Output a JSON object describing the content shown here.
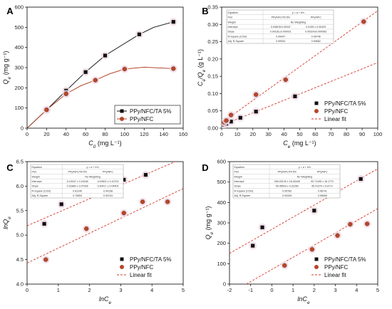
{
  "chart_data": [
    {
      "panel": "A",
      "type": "line",
      "xlabel_main": "C",
      "xlabel_sub": "0",
      "xlabel_unit": " (mg L⁻¹)",
      "ylabel_main": "Q",
      "ylabel_sub": "e",
      "ylabel_unit": " (mg g⁻¹)",
      "xlim": [
        0,
        160
      ],
      "ylim": [
        0,
        600
      ],
      "xticks": [
        0,
        20,
        40,
        60,
        80,
        100,
        120,
        140,
        160
      ],
      "yticks": [
        0,
        100,
        200,
        300,
        400,
        500,
        600
      ],
      "legend_position": "bottom-right",
      "series": [
        {
          "name": "PPy/NFC/TA 5%",
          "marker": "square",
          "color": "#111111",
          "points": [
            [
              20,
              91
            ],
            [
              40,
              186
            ],
            [
              60,
              278
            ],
            [
              80,
              360
            ],
            [
              115,
              465
            ],
            [
              150,
              527
            ]
          ],
          "curve": [
            [
              0,
              0
            ],
            [
              20,
              91
            ],
            [
              40,
              186
            ],
            [
              60,
              278
            ],
            [
              80,
              360
            ],
            [
              100,
              420
            ],
            [
              115,
              465
            ],
            [
              130,
              500
            ],
            [
              150,
              527
            ]
          ]
        },
        {
          "name": "PPy/NFC",
          "marker": "circle",
          "color": "#b5472b",
          "points": [
            [
              20,
              91
            ],
            [
              40,
              170
            ],
            [
              70,
              238
            ],
            [
              100,
              293
            ],
            [
              150,
              295
            ]
          ],
          "curve": [
            [
              0,
              0
            ],
            [
              20,
              91
            ],
            [
              40,
              170
            ],
            [
              55,
              210
            ],
            [
              70,
              238
            ],
            [
              85,
              270
            ],
            [
              100,
              293
            ],
            [
              120,
              302
            ],
            [
              150,
              295
            ]
          ]
        }
      ]
    },
    {
      "panel": "B",
      "type": "scatter",
      "xlabel_main": "C",
      "xlabel_sub": "e",
      "xlabel_unit": " (mg L⁻¹)",
      "ylabel_main": "C",
      "ylabel_sub": "e",
      "ylabel_mid": "/Q",
      "ylabel_sub2": "e",
      "ylabel_unit": " (g L⁻¹)",
      "xlim": [
        0,
        100
      ],
      "ylim": [
        0,
        0.35
      ],
      "xticks": [
        0,
        10,
        20,
        30,
        40,
        50,
        60,
        70,
        80,
        90,
        100
      ],
      "yticks": [
        0.0,
        0.05,
        0.1,
        0.15,
        0.2,
        0.25,
        0.3,
        0.35
      ],
      "ytick_decimals": 2,
      "legend_position": "bottom-right",
      "series": [
        {
          "name": "PPy/NFC/TA 5%",
          "marker": "square",
          "color": "#111111",
          "points": [
            [
              1.5,
              0.01
            ],
            [
              3,
              0.013
            ],
            [
              6,
              0.019
            ],
            [
              12,
              0.03
            ],
            [
              22,
              0.048
            ],
            [
              47,
              0.092
            ]
          ],
          "fit": [
            [
              0,
              0.0081
            ],
            [
              100,
              0.1895
            ]
          ]
        },
        {
          "name": "PPy/NFC",
          "marker": "circle",
          "color": "#b5472b",
          "points": [
            [
              1.5,
              0.017
            ],
            [
              3,
              0.022
            ],
            [
              6,
              0.038
            ],
            [
              22,
              0.097
            ],
            [
              41,
              0.14
            ],
            [
              91,
              0.308
            ]
          ],
          "fit": [
            [
              0,
              0.0155
            ],
            [
              100,
              0.3395
            ]
          ]
        }
      ],
      "fit_label": "Linear fit",
      "fit_color": "#d2382c",
      "table": {
        "rows": [
          [
            "Equation",
            "y = a + b*x",
            ""
          ],
          [
            "Plot",
            "PPy/NFC/TA 5%",
            "PPy/NFC"
          ],
          [
            "Weight",
            "No Weighting",
            ""
          ],
          [
            "Intercept",
            "0.00815±0.00047",
            "0.0155 ± 0.00429"
          ],
          [
            "Slope",
            "0.00181±0.000021",
            "0.00324±0.000083"
          ],
          [
            "R-Square (COD)",
            "0.99947",
            "0.99746"
          ],
          [
            "Adj. R-Square",
            "0.99934",
            "0.99682"
          ]
        ]
      }
    },
    {
      "panel": "C",
      "type": "scatter",
      "xlabel_main": "lnC",
      "xlabel_sub": "e",
      "ylabel_main": "lnQ",
      "ylabel_sub": "e",
      "xlim": [
        0,
        5
      ],
      "ylim": [
        4.0,
        6.5
      ],
      "xticks": [
        0,
        1,
        2,
        3,
        4,
        5
      ],
      "yticks": [
        4.0,
        4.5,
        5.0,
        5.5,
        6.0,
        6.5
      ],
      "ytick_decimals": 1,
      "legend_position": "bottom-right",
      "series": [
        {
          "name": "PPy/NFC/TA 5%",
          "marker": "square",
          "color": "#111111",
          "points": [
            [
              0.55,
              5.23
            ],
            [
              1.1,
              5.63
            ],
            [
              1.95,
              5.88
            ],
            [
              3.1,
              6.13
            ],
            [
              3.8,
              6.23
            ]
          ],
          "fit": [
            [
              0,
              5.19
            ],
            [
              5,
              6.57
            ]
          ]
        },
        {
          "name": "PPy/NFC",
          "marker": "circle",
          "color": "#b5472b",
          "points": [
            [
              0.6,
              4.5
            ],
            [
              1.9,
              5.13
            ],
            [
              3.1,
              5.45
            ],
            [
              3.7,
              5.68
            ],
            [
              4.5,
              5.68
            ]
          ],
          "fit": [
            [
              0,
              4.43
            ],
            [
              5,
              5.95
            ]
          ]
        }
      ],
      "fit_label": "Linear fit",
      "fit_color": "#d2382c",
      "table": {
        "rows": [
          [
            "Equation",
            "y = a + b*x",
            ""
          ],
          [
            "Plot",
            "PPy/NFC/TA 5%",
            "PPy/NFC"
          ],
          [
            "Weight",
            "No Weighting",
            ""
          ],
          [
            "Intercept",
            "5.19167 ± 0.16165",
            "4.43502 ± 0.10702"
          ],
          [
            "Slope",
            "0.32880 ± 0.07928",
            "0.30417 ± 0.04402"
          ],
          [
            "R-Square (COD)",
            "0.81240",
            "0.94158"
          ],
          [
            "Adj. R-Square",
            "0.75554",
            "0.92234"
          ]
        ]
      }
    },
    {
      "panel": "D",
      "type": "scatter",
      "xlabel_main": "lnC",
      "xlabel_sub": "e",
      "ylabel_main": "Q",
      "ylabel_sub": "e",
      "ylabel_unit": " (mg g⁻¹)",
      "xlim": [
        -2,
        5
      ],
      "ylim": [
        0,
        600
      ],
      "xticks": [
        -2,
        -1,
        0,
        1,
        2,
        3,
        4,
        5
      ],
      "yticks": [
        0,
        100,
        200,
        300,
        400,
        500,
        600
      ],
      "legend_position": "bottom-right",
      "series": [
        {
          "name": "PPy/NFC/TA 5%",
          "marker": "square",
          "color": "#111111",
          "points": [
            [
              -0.9,
              188
            ],
            [
              -0.45,
              278
            ],
            [
              2.0,
              360
            ],
            [
              3.1,
              463
            ],
            [
              4.2,
              515
            ]
          ],
          "fit": [
            [
              -2,
              150
            ],
            [
              5,
              565
            ]
          ]
        },
        {
          "name": "PPy/NFC",
          "marker": "circle",
          "color": "#b5472b",
          "points": [
            [
              0.6,
              91
            ],
            [
              1.9,
              170
            ],
            [
              3.1,
              238
            ],
            [
              3.7,
              293
            ],
            [
              4.5,
              295
            ]
          ],
          "fit": [
            [
              -1.2,
              0
            ],
            [
              5,
              370
            ]
          ]
        }
      ],
      "fit_label": "Linear fit",
      "fit_color": "#d2382c",
      "table": {
        "rows": [
          [
            "Equation",
            "y = a + b*x",
            ""
          ],
          [
            "Plot",
            "PPy/NFC/TA 5%",
            "PPy/NFC"
          ],
          [
            "Weight",
            "No Weighting",
            ""
          ],
          [
            "Intercept",
            "265.03139 ± 18.40445",
            "82.71195 ± 16.1772"
          ],
          [
            "Slope",
            "59.46543 ± 4.22283",
            "55.41374 ± 5.8717"
          ],
          [
            "R-Square (COD)",
            "0.95782",
            "0.96741"
          ],
          [
            "Adj. R-Square",
            "0.94349",
            "0.95655"
          ]
        ]
      }
    }
  ]
}
